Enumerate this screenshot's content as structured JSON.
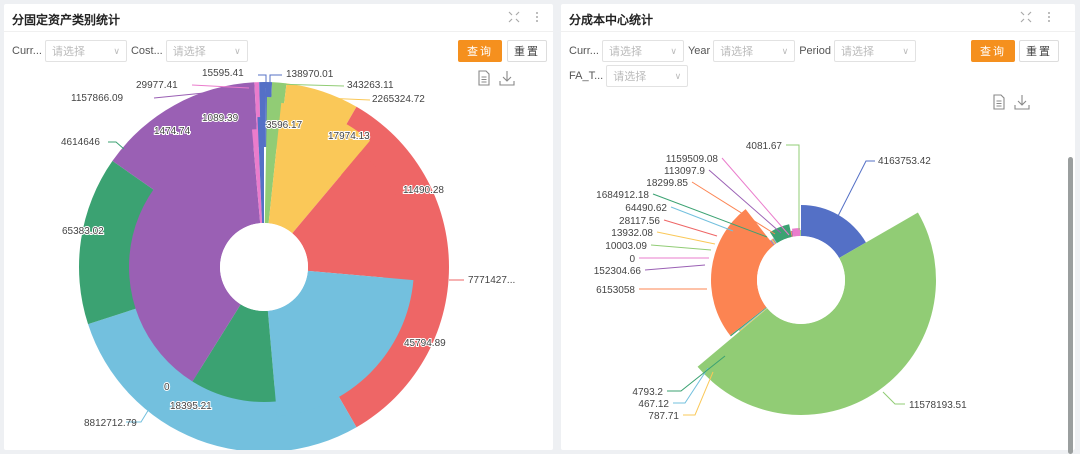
{
  "left_panel": {
    "title": "分固定资产类别统计",
    "filters": [
      {
        "label": "Curr...",
        "placeholder": "请选择"
      },
      {
        "label": "Cost...",
        "placeholder": "请选择"
      }
    ],
    "query_label": "查询",
    "reset_label": "重置",
    "header_icons": [
      "fullscreen-icon",
      "more-vert-icon"
    ],
    "tool_icons": [
      "document-icon",
      "download-icon"
    ]
  },
  "right_panel": {
    "title": "分成本中心统计",
    "filters": [
      {
        "label": "Curr...",
        "placeholder": "请选择"
      },
      {
        "label": "Year",
        "placeholder": "请选择"
      },
      {
        "label": "Period",
        "placeholder": "请选择"
      },
      {
        "label": "FA_T...",
        "placeholder": "请选择"
      }
    ],
    "query_label": "查询",
    "reset_label": "重置",
    "header_icons": [
      "fullscreen-icon",
      "more-vert-icon"
    ],
    "tool_icons": [
      "document-icon",
      "download-icon"
    ]
  },
  "chart_data": [
    {
      "type": "pie",
      "subtype": "rose-donut-nested",
      "title": "分固定资产类别统计",
      "outer_series": {
        "labels": [
          "138970.01",
          "343263.11",
          "2265324.72",
          "7771427...",
          "8812712.79",
          "4614646",
          "1157866.09",
          "29977.41",
          "15595.41"
        ],
        "values": [
          138970.01,
          343263.11,
          2265324.72,
          7771400,
          8812712.79,
          4614646,
          1157866.09,
          29977.41,
          15595.41
        ],
        "colors": [
          "#5470c6",
          "#91cc75",
          "#fac858",
          "#ee6666",
          "#73c0de",
          "#3ba272",
          "#9a60b4",
          "#ea7ccc",
          "#5470c6"
        ]
      },
      "inner_series": {
        "labels": [
          "3596.17",
          "17974.13",
          "11490.28",
          "45794.89",
          "18395.21",
          "0",
          "65383.02",
          "1474.74",
          "1089.39"
        ],
        "values": [
          3596.17,
          17974.13,
          11490.28,
          45794.89,
          18395.21,
          0,
          65383.02,
          1474.74,
          1089.39
        ]
      }
    },
    {
      "type": "pie",
      "subtype": "rose-donut",
      "title": "分成本中心统计",
      "labels": [
        "4163753.42",
        "11578193.51",
        "787.71",
        "467.12",
        "4793.2",
        "6153058",
        "152304.66",
        "0",
        "10003.09",
        "13932.08",
        "28117.56",
        "64490.62",
        "1684912.18",
        "18299.85",
        "113097.9",
        "1159509.08",
        "4081.67"
      ],
      "values": [
        4163753.42,
        11578193.51,
        787.71,
        467.12,
        4793.2,
        6153058,
        152304.66,
        0,
        10003.09,
        13932.08,
        28117.56,
        64490.62,
        1684912.18,
        18299.85,
        113097.9,
        1159509.08,
        4081.67
      ],
      "colors": [
        "#5470c6",
        "#91cc75",
        "#fac858",
        "#73c0de",
        "#3ba272",
        "#fc8452",
        "#9a60b4",
        "#ea7ccc",
        "#91cc75",
        "#fac858",
        "#ee6666",
        "#73c0de",
        "#3ba272",
        "#fc8452",
        "#9a60b4",
        "#ea7ccc",
        "#91cc75"
      ]
    }
  ]
}
